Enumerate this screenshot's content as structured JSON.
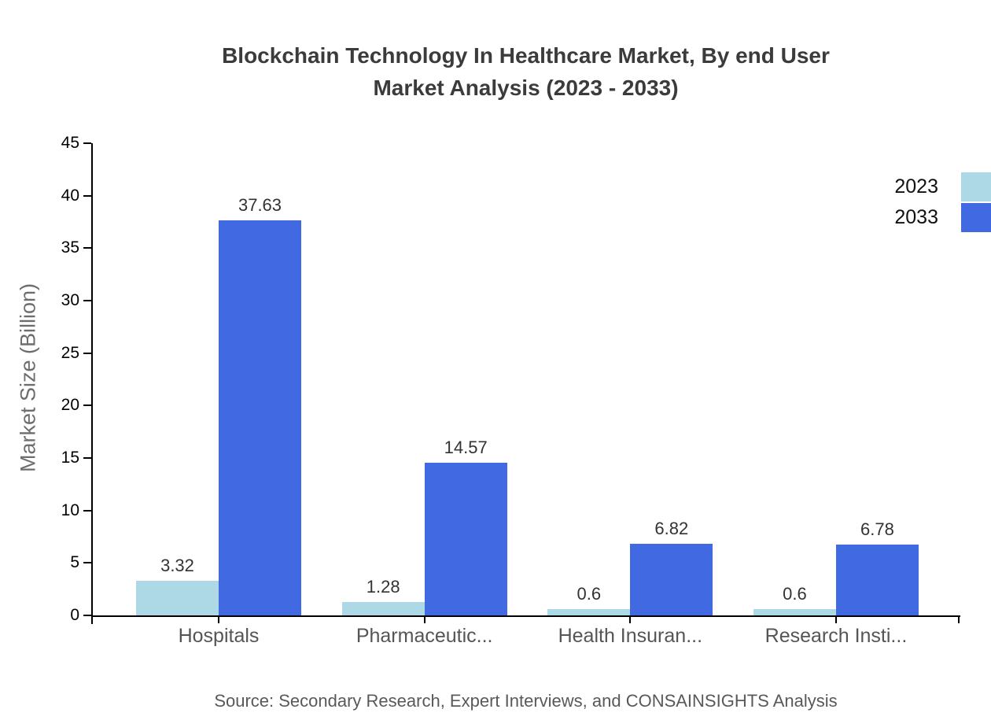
{
  "chart_data": {
    "type": "bar",
    "title": "Blockchain Technology In Healthcare Market, By end User Market Analysis (2023 - 2033)",
    "title_lines": [
      "Blockchain Technology In Healthcare Market, By end User",
      "Market Analysis (2023 - 2033)"
    ],
    "ylabel": "Market Size (Billion)",
    "xlabel": "",
    "categories": [
      "Hospitals",
      "Pharmaceutic...",
      "Health Insuran...",
      "Research Insti..."
    ],
    "series": [
      {
        "name": "2023",
        "color": "#ADD8E6",
        "values": [
          3.32,
          1.28,
          0.6,
          0.6
        ]
      },
      {
        "name": "2033",
        "color": "#4169E1",
        "values": [
          37.63,
          14.57,
          6.82,
          6.78
        ]
      }
    ],
    "ylim": [
      0,
      45
    ],
    "ytick_step": 5,
    "grid": false,
    "legend_position": "top-right",
    "value_labels_shown": true
  },
  "source_note": "Source: Secondary Research, Expert Interviews, and CONSAINSIGHTS Analysis"
}
